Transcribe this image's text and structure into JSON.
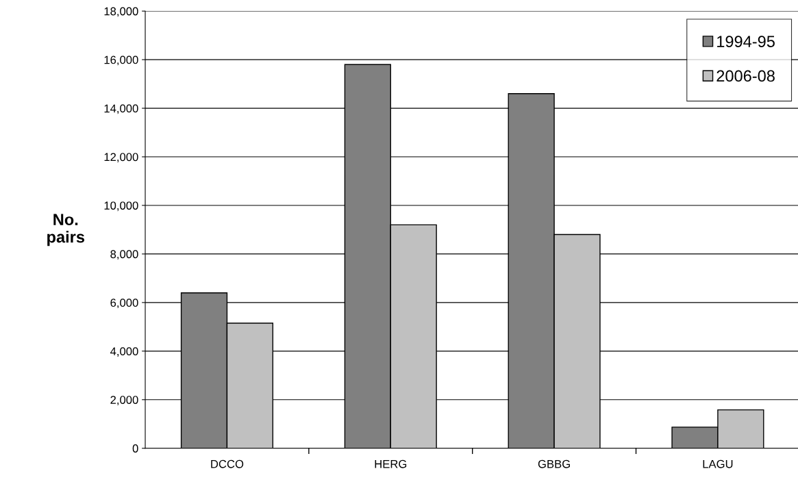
{
  "chart_data": {
    "type": "bar",
    "ylabel": "No.\npairs",
    "categories": [
      "DCCO",
      "HERG",
      "GBBG",
      "LAGU"
    ],
    "series": [
      {
        "name": "1994-95",
        "color": "#808080",
        "values": [
          6400,
          15800,
          14600,
          870
        ]
      },
      {
        "name": "2006-08",
        "color": "#c0c0c0",
        "values": [
          5150,
          9200,
          8800,
          1580
        ]
      }
    ],
    "ylim": [
      0,
      18000
    ],
    "yticks": [
      {
        "value": 0,
        "label": "0"
      },
      {
        "value": 2000,
        "label": "2,000"
      },
      {
        "value": 4000,
        "label": "4,000"
      },
      {
        "value": 6000,
        "label": "6,000"
      },
      {
        "value": 8000,
        "label": "8,000"
      },
      {
        "value": 10000,
        "label": "10,000"
      },
      {
        "value": 12000,
        "label": "12,000"
      },
      {
        "value": 14000,
        "label": "14,000"
      },
      {
        "value": 16000,
        "label": "16,000"
      },
      {
        "value": 18000,
        "label": "18,000"
      }
    ],
    "grid": "y",
    "legend": "top right"
  }
}
